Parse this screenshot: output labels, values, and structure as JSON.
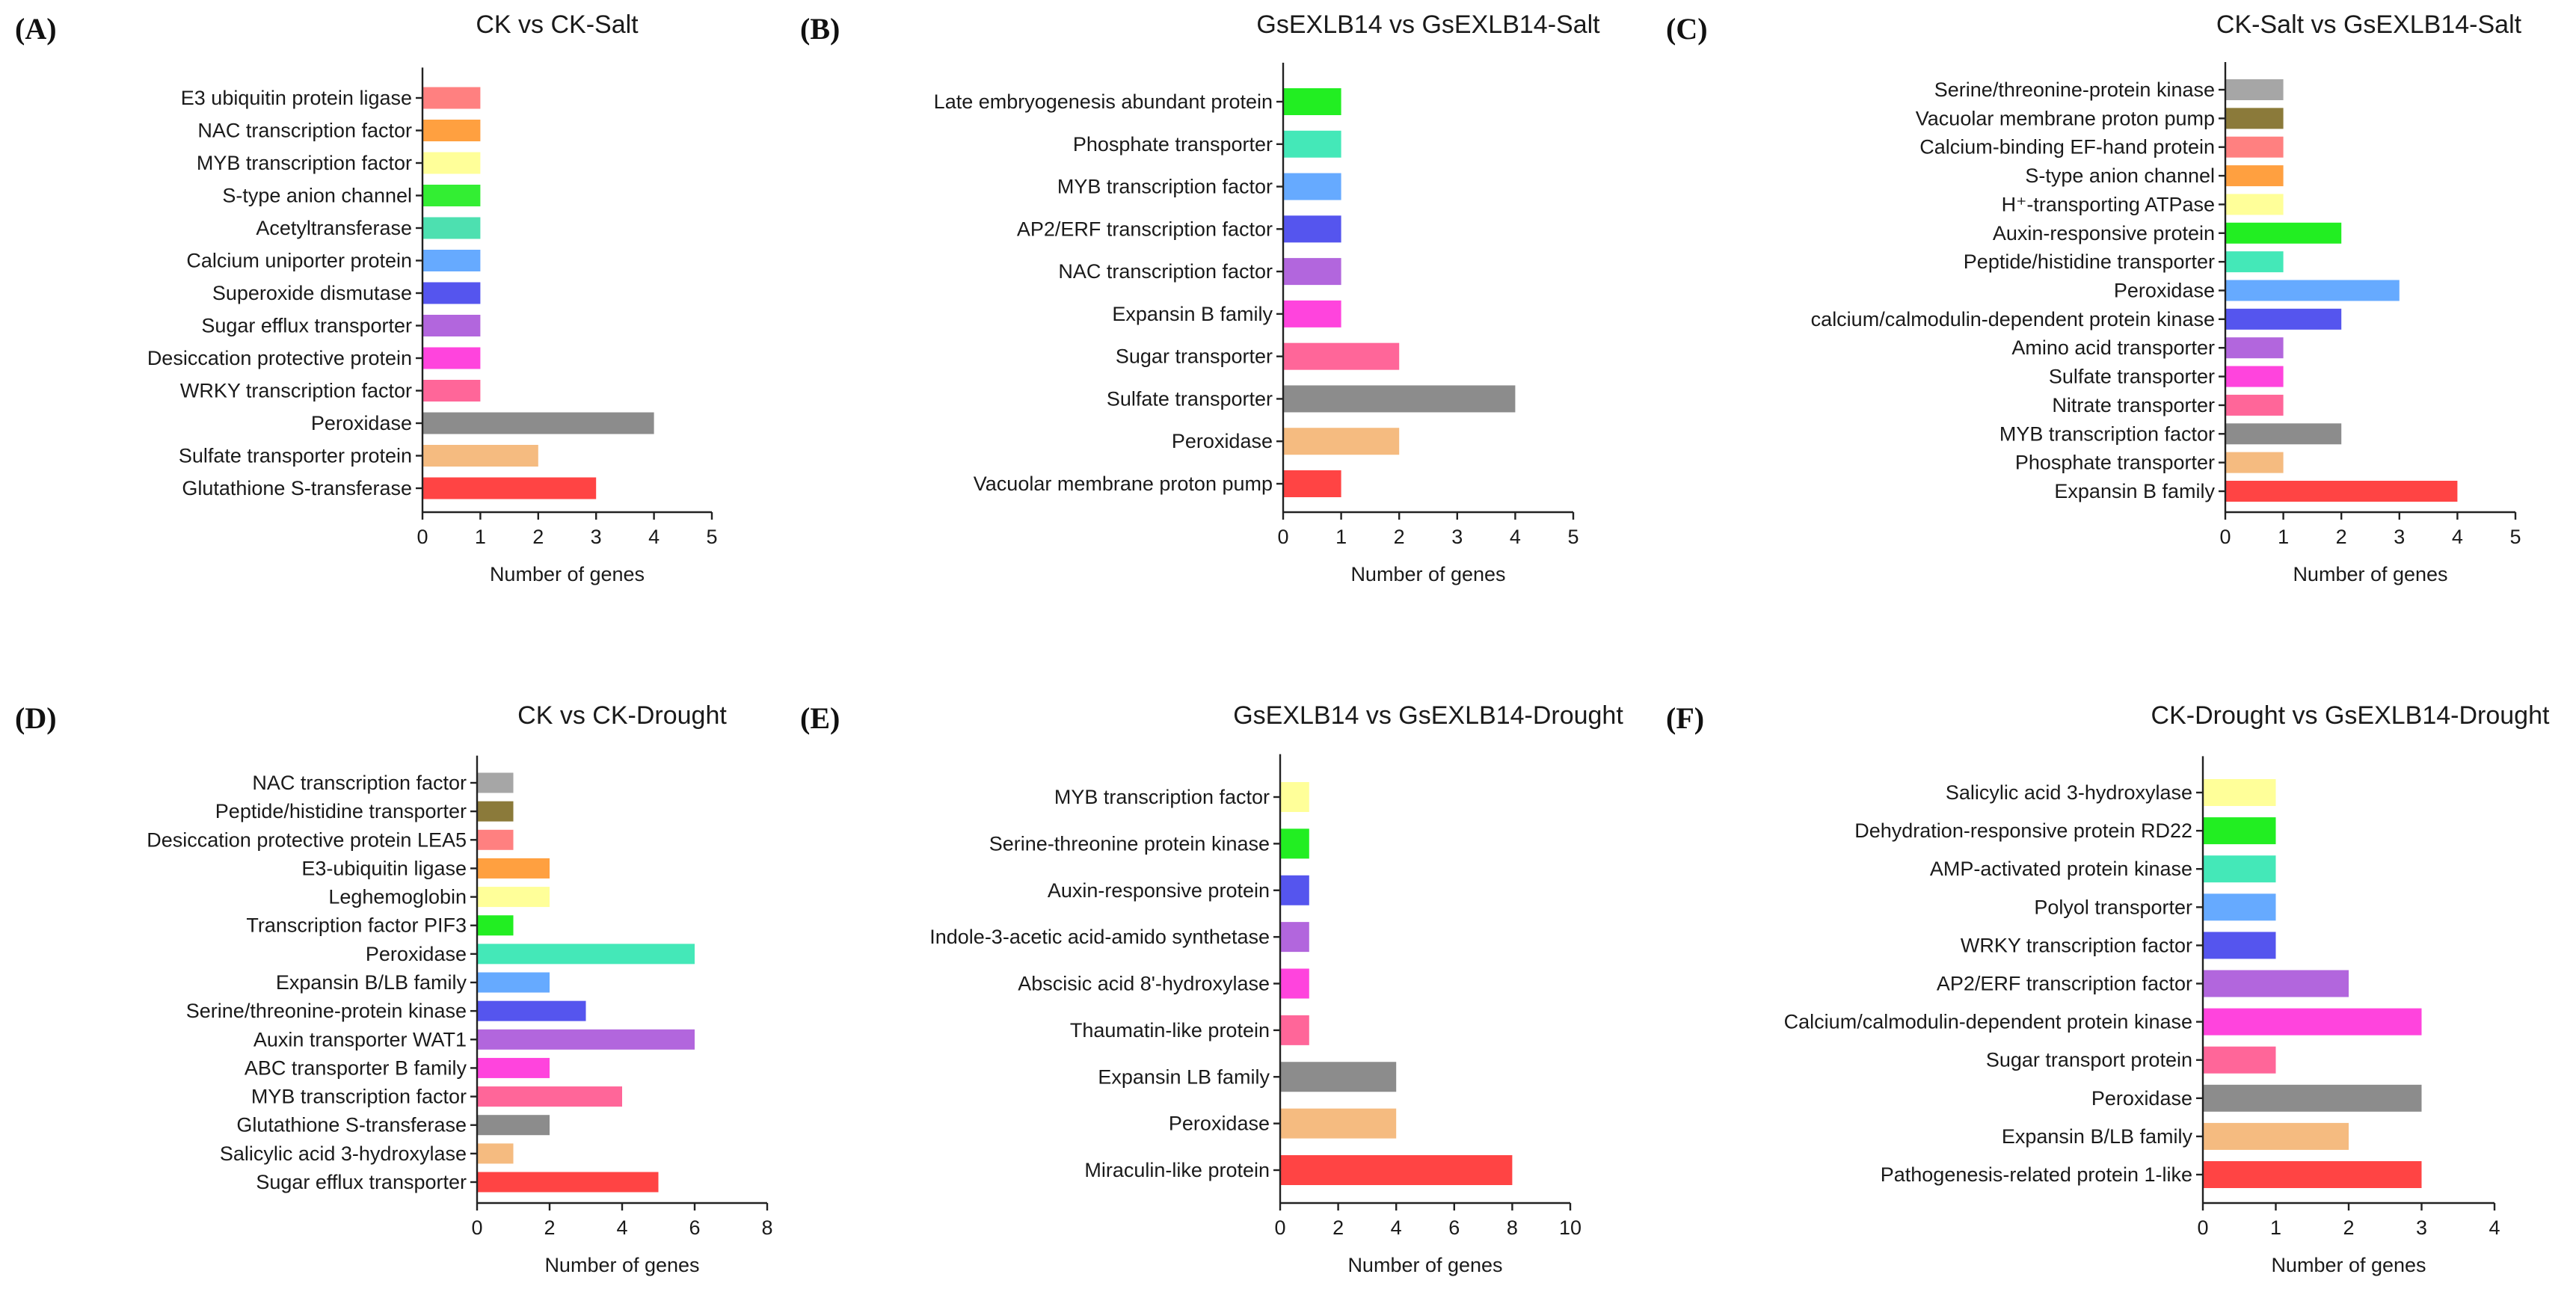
{
  "figure": {
    "xlabel": "Number of genes"
  },
  "chart_data": [
    {
      "type": "bar",
      "orientation": "horizontal",
      "panel": "(A)",
      "title": "CK vs CK-Salt",
      "xlabel": "Number of genes",
      "xlim": [
        0,
        5
      ],
      "xticks": [
        0,
        1,
        2,
        3,
        4,
        5
      ],
      "categories": [
        "E3 ubiquitin protein ligase",
        "NAC transcription factor",
        "MYB transcription factor",
        "S-type anion channel",
        "Acetyltransferase",
        "Calcium uniporter protein",
        "Superoxide dismutase",
        "Sugar efflux transporter",
        "Desiccation protective protein",
        "WRKY transcription factor",
        "Peroxidase",
        "Sulfate transporter protein",
        "Glutathione S-transferase"
      ],
      "values": [
        1,
        1,
        1,
        1,
        1,
        1,
        1,
        1,
        1,
        1,
        4,
        2,
        3
      ],
      "colors": [
        "#ff8080",
        "#ffa040",
        "#ffff99",
        "#33ee33",
        "#4de0b0",
        "#66aaff",
        "#5555ee",
        "#b266dd",
        "#ff44dd",
        "#ff6699",
        "#8c8c8c",
        "#f5bb80",
        "#ff4444"
      ]
    },
    {
      "type": "bar",
      "orientation": "horizontal",
      "panel": "(B)",
      "title": "GsEXLB14 vs GsEXLB14-Salt",
      "xlabel": "Number of genes",
      "xlim": [
        0,
        5
      ],
      "xticks": [
        0,
        1,
        2,
        3,
        4,
        5
      ],
      "categories": [
        "Late embryogenesis abundant protein",
        "Phosphate transporter",
        "MYB transcription factor",
        "AP2/ERF transcription factor",
        "NAC transcription factor",
        "Expansin B family",
        "Sugar transporter",
        "Sulfate transporter",
        "Peroxidase",
        "Vacuolar membrane proton pump"
      ],
      "values": [
        1,
        1,
        1,
        1,
        1,
        1,
        2,
        4,
        2,
        1
      ],
      "colors": [
        "#22ee22",
        "#44e8b8",
        "#66aaff",
        "#5555ee",
        "#b266dd",
        "#ff44dd",
        "#ff6699",
        "#8c8c8c",
        "#f5bb80",
        "#ff4444"
      ]
    },
    {
      "type": "bar",
      "orientation": "horizontal",
      "panel": "(C)",
      "title": "CK-Salt vs GsEXLB14-Salt",
      "xlabel": "Number of genes",
      "xlim": [
        0,
        5
      ],
      "xticks": [
        0,
        1,
        2,
        3,
        4,
        5
      ],
      "categories": [
        "Serine/threonine-protein kinase",
        "Vacuolar membrane proton pump",
        "Calcium-binding EF-hand protein",
        "S-type anion channel",
        "H⁺-transporting ATPase",
        "Auxin-responsive protein",
        "Peptide/histidine transporter",
        "Peroxidase",
        "calcium/calmodulin-dependent protein kinase",
        "Amino acid transporter",
        "Sulfate transporter",
        "Nitrate transporter",
        "MYB transcription factor",
        "Phosphate transporter",
        "Expansin B family"
      ],
      "values": [
        1,
        1,
        1,
        1,
        1,
        2,
        1,
        3,
        2,
        1,
        1,
        1,
        2,
        1,
        4
      ],
      "colors": [
        "#a6a6a6",
        "#8b7a3a",
        "#ff8080",
        "#ffa040",
        "#ffff99",
        "#22ee22",
        "#44e8b8",
        "#66aaff",
        "#5555ee",
        "#b266dd",
        "#ff44dd",
        "#ff6699",
        "#8c8c8c",
        "#f5bb80",
        "#ff4444"
      ]
    },
    {
      "type": "bar",
      "orientation": "horizontal",
      "panel": "(D)",
      "title": "CK vs CK-Drought",
      "xlabel": "Number of genes",
      "xlim": [
        0,
        8
      ],
      "xticks": [
        0,
        2,
        4,
        6,
        8
      ],
      "categories": [
        "NAC transcription factor",
        "Peptide/histidine transporter",
        "Desiccation protective protein LEA5",
        "E3-ubiquitin ligase",
        "Leghemoglobin",
        "Transcription factor PIF3",
        "Peroxidase",
        "Expansin B/LB family",
        "Serine/threonine-protein kinase",
        "Auxin transporter WAT1",
        "ABC transporter B family",
        "MYB transcription factor",
        "Glutathione S-transferase",
        "Salicylic acid 3-hydroxylase",
        "Sugar efflux transporter"
      ],
      "values": [
        1,
        1,
        1,
        2,
        2,
        1,
        6,
        2,
        3,
        6,
        2,
        4,
        2,
        1,
        5
      ],
      "colors": [
        "#a6a6a6",
        "#8b7a3a",
        "#ff8080",
        "#ffa040",
        "#ffff99",
        "#22ee22",
        "#44e8b8",
        "#66aaff",
        "#5555ee",
        "#b266dd",
        "#ff44dd",
        "#ff6699",
        "#8c8c8c",
        "#f5bb80",
        "#ff4444"
      ]
    },
    {
      "type": "bar",
      "orientation": "horizontal",
      "panel": "(E)",
      "title": "GsEXLB14 vs GsEXLB14-Drought",
      "xlabel": "Number of genes",
      "xlim": [
        0,
        10
      ],
      "xticks": [
        0,
        2,
        4,
        6,
        8,
        10
      ],
      "categories": [
        "MYB transcription factor",
        "Serine-threonine protein kinase",
        "Auxin-responsive protein",
        "Indole-3-acetic acid-amido synthetase",
        "Abscisic acid 8'-hydroxylase",
        "Thaumatin-like protein",
        "Expansin LB family",
        "Peroxidase",
        "Miraculin-like protein"
      ],
      "values": [
        1,
        1,
        1,
        1,
        1,
        1,
        4,
        4,
        8
      ],
      "colors": [
        "#ffff99",
        "#22ee22",
        "#5555ee",
        "#b266dd",
        "#ff44dd",
        "#ff6699",
        "#8c8c8c",
        "#f5bb80",
        "#ff4444"
      ]
    },
    {
      "type": "bar",
      "orientation": "horizontal",
      "panel": "(F)",
      "title": "CK-Drought vs GsEXLB14-Drought",
      "xlabel": "Number of genes",
      "xlim": [
        0,
        4
      ],
      "xticks": [
        0,
        1,
        2,
        3,
        4
      ],
      "categories": [
        "Salicylic acid 3-hydroxylase",
        "Dehydration-responsive protein RD22",
        "AMP-activated protein kinase",
        "Polyol transporter",
        "WRKY transcription factor",
        "AP2/ERF transcription factor",
        "Calcium/calmodulin-dependent protein kinase",
        "Sugar transport protein",
        "Peroxidase",
        "Expansin B/LB family",
        "Pathogenesis-related protein 1-like"
      ],
      "values": [
        1,
        1,
        1,
        1,
        1,
        2,
        3,
        1,
        3,
        2,
        3
      ],
      "colors": [
        "#ffff99",
        "#22ee22",
        "#44e8b8",
        "#66aaff",
        "#5555ee",
        "#b266dd",
        "#ff44dd",
        "#ff6699",
        "#8c8c8c",
        "#f5bb80",
        "#ff4444"
      ]
    }
  ]
}
